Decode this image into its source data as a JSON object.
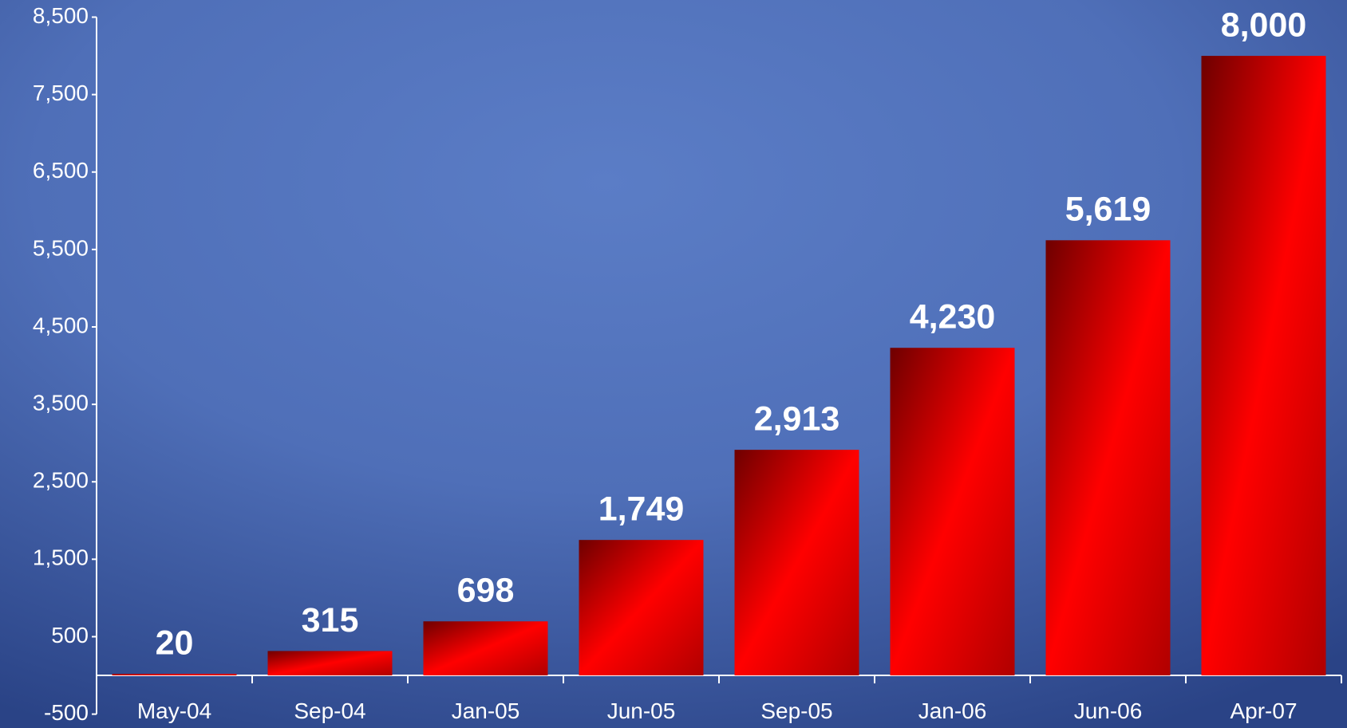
{
  "chart_data": {
    "type": "bar",
    "categories": [
      "May-04",
      "Sep-04",
      "Jan-05",
      "Jun-05",
      "Sep-05",
      "Jan-06",
      "Jun-06",
      "Apr-07"
    ],
    "values": [
      20,
      315,
      698,
      1749,
      2913,
      4230,
      5619,
      8000
    ],
    "value_labels": [
      "20",
      "315",
      "698",
      "1,749",
      "2,913",
      "4,230",
      "5,619",
      "8,000"
    ],
    "color": "#ff0000",
    "ylim": [
      -500,
      8500
    ],
    "yticks": [
      -500,
      500,
      {
        "value": 1500,
        "label": "1,500"
      },
      {
        "value": 2500,
        "label": "2,500"
      },
      {
        "value": 3500,
        "label": "3,500"
      },
      {
        "value": 4500,
        "label": "4,500"
      },
      {
        "value": 5500,
        "label": "5,500"
      },
      {
        "value": 6500,
        "label": "6,500"
      },
      {
        "value": 7500,
        "label": "7,500"
      },
      {
        "value": 8500,
        "label": "8,500"
      }
    ],
    "grid": false
  }
}
